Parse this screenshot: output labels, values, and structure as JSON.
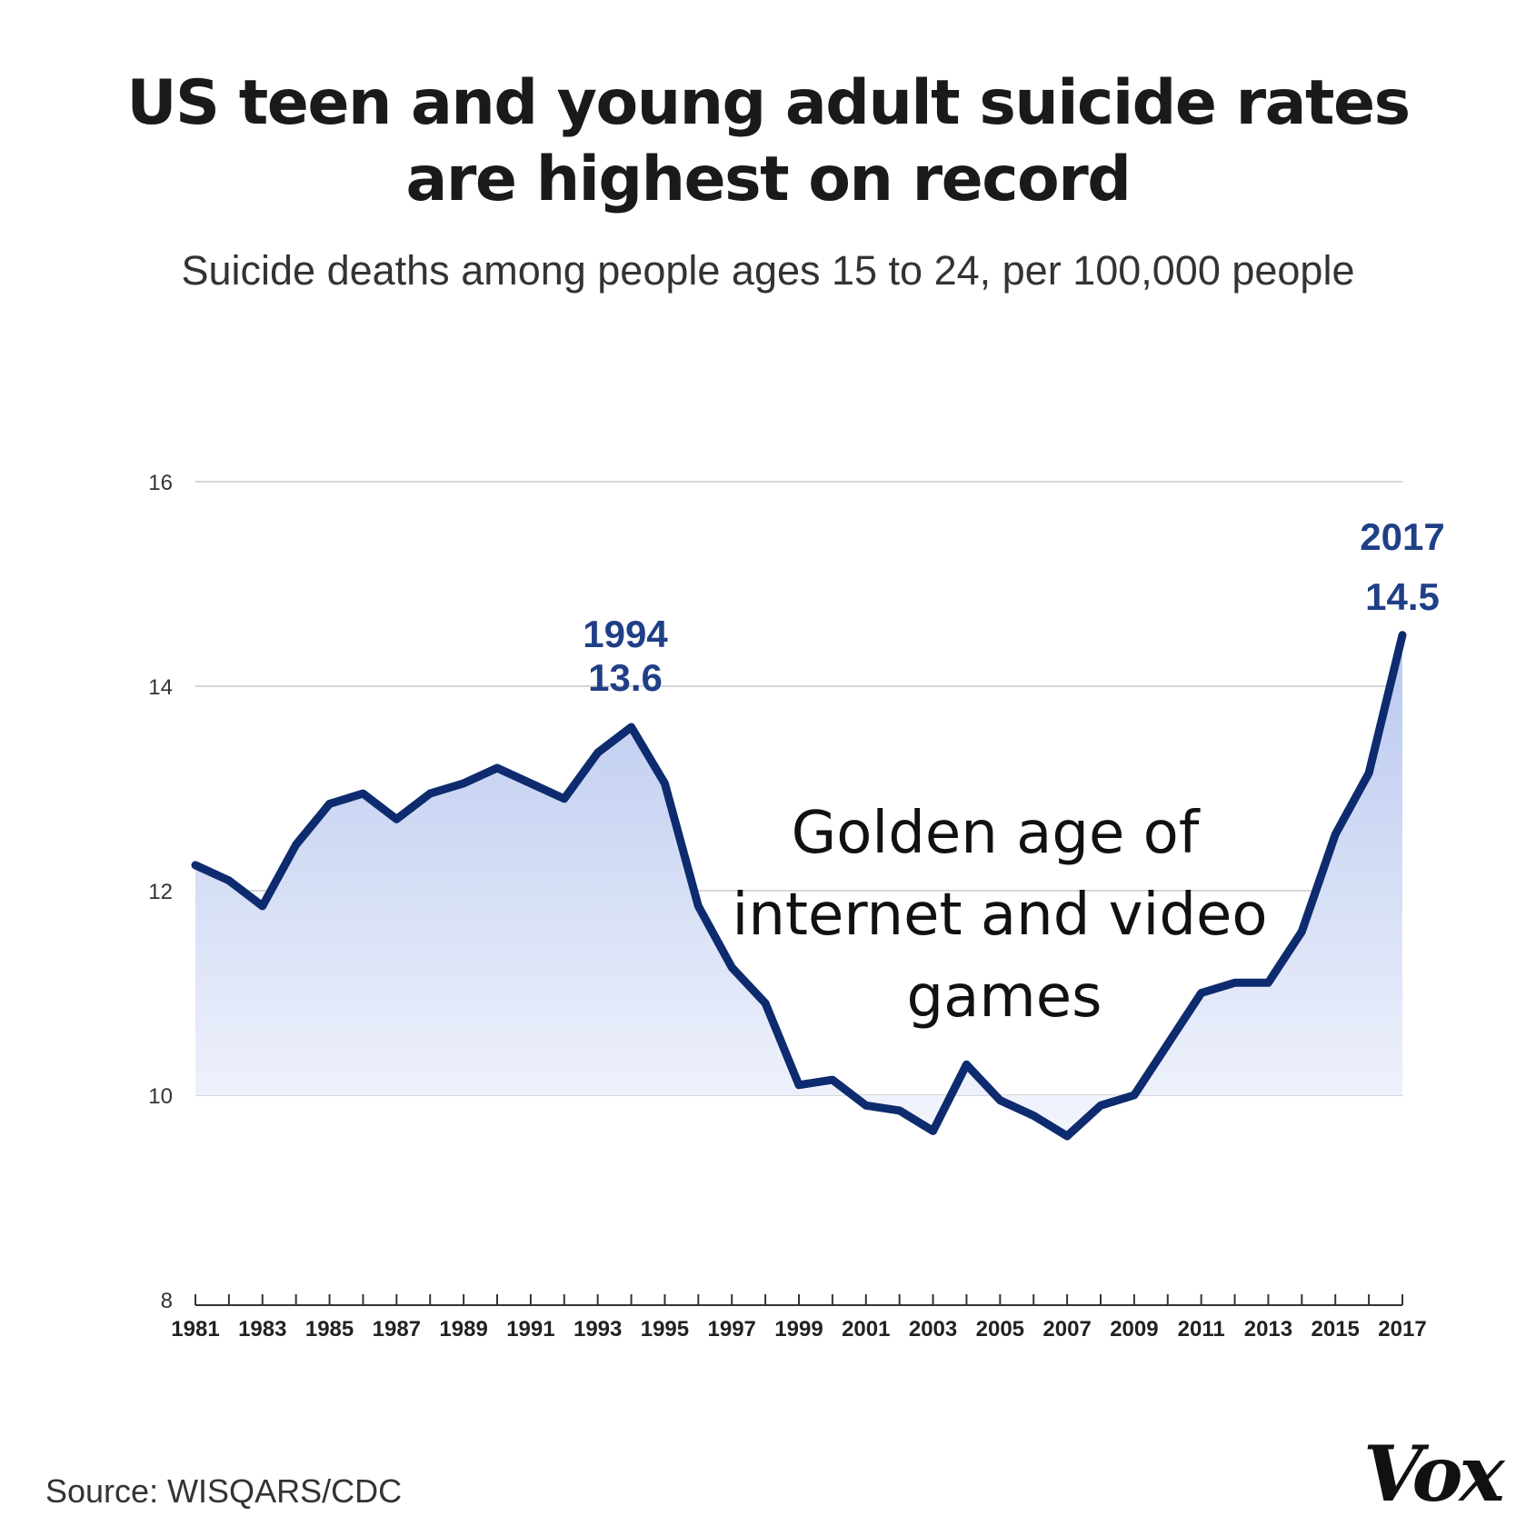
{
  "header": {
    "title_line1": "US teen and young adult suicide rates",
    "title_line2": "are highest on record",
    "subtitle": "Suicide deaths among people ages 15 to 24, per 100,000 people"
  },
  "footer": {
    "source": "Source: WISQARS/CDC",
    "logo": "Vox"
  },
  "colors": {
    "line": "#0d2b6e",
    "highlight_text": "#1f3f87",
    "fill_top": "#b9c8ef",
    "fill_bottom": "#f1f4fd",
    "grid": "#d7d7d7"
  },
  "chart_data": {
    "type": "area",
    "title": "US teen and young adult suicide rates are highest on record",
    "subtitle": "Suicide deaths among people ages 15 to 24, per 100,000 people",
    "xlabel": "",
    "ylabel": "",
    "ylim": [
      8,
      16
    ],
    "xlim": [
      1981,
      2017
    ],
    "yticks": [
      8,
      10,
      12,
      14,
      16
    ],
    "xticks": [
      1981,
      1983,
      1985,
      1987,
      1989,
      1991,
      1993,
      1995,
      1997,
      1999,
      2001,
      2003,
      2005,
      2007,
      2009,
      2011,
      2013,
      2015,
      2017
    ],
    "grid": true,
    "series": [
      {
        "x": [
          1981,
          1982,
          1983,
          1984,
          1985,
          1986,
          1987,
          1988,
          1989,
          1990,
          1991,
          1992,
          1993,
          1994,
          1995,
          1996,
          1997,
          1998,
          1999,
          2000,
          2001,
          2002,
          2003,
          2004,
          2005,
          2006,
          2007,
          2008,
          2009,
          2010,
          2011,
          2012,
          2013,
          2014,
          2015,
          2016,
          2017
        ],
        "values": [
          12.25,
          12.1,
          11.85,
          12.45,
          12.85,
          12.95,
          12.7,
          12.95,
          13.05,
          13.2,
          13.05,
          12.9,
          13.35,
          13.6,
          13.05,
          11.85,
          11.25,
          10.9,
          10.1,
          10.15,
          9.9,
          9.85,
          9.65,
          10.3,
          9.95,
          9.8,
          9.6,
          9.9,
          10.0,
          10.5,
          11.0,
          11.1,
          11.1,
          11.6,
          12.55,
          13.15,
          14.5
        ]
      }
    ],
    "annotations": [
      {
        "year_label": "1994",
        "value_label": "13.6"
      },
      {
        "year_label": "2017",
        "value_label": "14.5"
      }
    ],
    "overlay_text": [
      "Golden age of",
      "internet and video",
      "games"
    ]
  }
}
